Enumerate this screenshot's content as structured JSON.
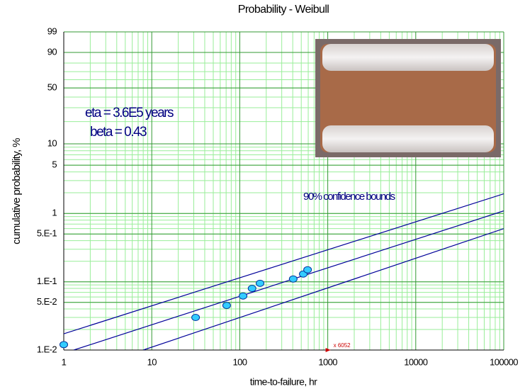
{
  "chart_data": {
    "type": "scatter",
    "title": "Probability - Weibull",
    "x_label": "time-to-failure, hr",
    "y_label": "cumulative probability, %",
    "xscale": "log",
    "yscale": "weibull",
    "xlim": [
      1,
      100000
    ],
    "ylim": [
      0.01,
      99
    ],
    "xticks": [
      1,
      10,
      100,
      1000,
      10000,
      100000
    ],
    "yticks": [
      {
        "value": 0.01,
        "label": "1.E-2"
      },
      {
        "value": 0.05,
        "label": "5.E-2"
      },
      {
        "value": 0.1,
        "label": "1.E-1"
      },
      {
        "value": 0.5,
        "label": "5.E-1"
      },
      1,
      5,
      10,
      50,
      90,
      99
    ],
    "grid": true,
    "points": {
      "color": "#33ccff",
      "x": [
        1,
        31.5,
        71,
        109,
        138,
        170,
        405,
        527,
        590
      ],
      "values": [
        0.012,
        0.03,
        0.045,
        0.062,
        0.08,
        0.095,
        0.11,
        0.13,
        0.15
      ]
    },
    "lines": [
      {
        "color": "#000099",
        "x": [
          1,
          100000
        ],
        "values": [
          0.0173,
          1.93
        ]
      },
      {
        "color": "#000099",
        "x": [
          1.3,
          100000
        ],
        "values": [
          0.01,
          1.09
        ]
      },
      {
        "color": "#000099",
        "x": [
          8,
          100000
        ],
        "values": [
          0.01,
          0.6
        ]
      }
    ],
    "annotations": [
      "eta = 3.6E5 years",
      "beta = 0.43",
      "90% confidence bounds"
    ],
    "cursor": {
      "x": 1000,
      "label": "x 6052"
    }
  }
}
